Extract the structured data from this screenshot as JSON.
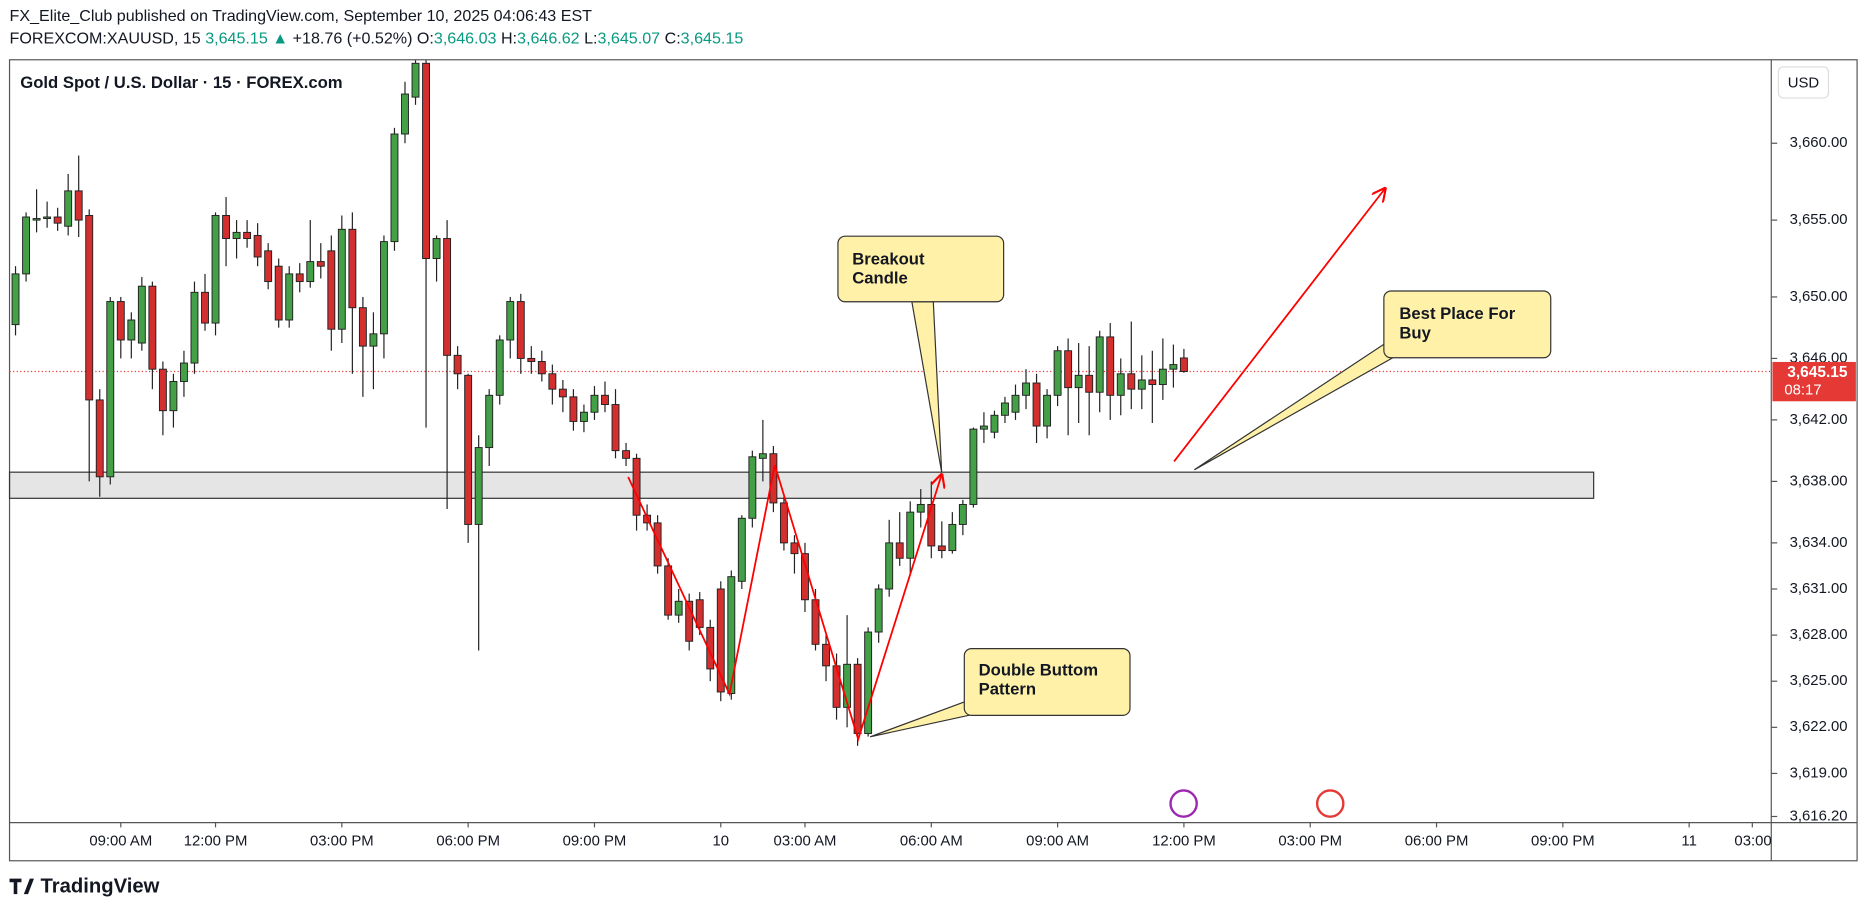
{
  "chart_data": {
    "type": "candlestick",
    "publisher": "FX_Elite_Club published on TradingView.com, September 10, 2025 04:06:43 EST",
    "info": [
      "FOREXCOM:XAUUSD, 15",
      "3,645.15",
      "▲",
      "+18.76 (+0.52%)",
      "O:",
      "3,646.03",
      "H:",
      "3,646.62",
      "L:",
      "3,645.07",
      "C:",
      "3,645.15"
    ],
    "title": "Gold Spot / U.S. Dollar · 15 · FOREX.com",
    "currency": "USD",
    "last_price": 3645.15,
    "last_price_label": "3,645.15",
    "countdown": "08:17",
    "up_color": "#43a047",
    "down_color": "#d32f2f",
    "ohlc": [
      [
        3648.2,
        3652,
        3647.5,
        3651.5
      ],
      [
        3651.5,
        3655.5,
        3651,
        3655.2
      ],
      [
        3655,
        3657,
        3654.2,
        3655.1
      ],
      [
        3655.1,
        3656.2,
        3654.5,
        3655.2
      ],
      [
        3655.2,
        3655.8,
        3654.3,
        3654.8
      ],
      [
        3654.6,
        3658,
        3654,
        3656.9
      ],
      [
        3656.9,
        3659.2,
        3653.9,
        3655
      ],
      [
        3655.3,
        3655.7,
        3638,
        3643.3
      ],
      [
        3643.3,
        3644,
        3637,
        3638.3
      ],
      [
        3638.3,
        3650,
        3637.8,
        3649.7
      ],
      [
        3649.7,
        3650,
        3646,
        3647.2
      ],
      [
        3647.2,
        3649,
        3646,
        3648.5
      ],
      [
        3647,
        3651.3,
        3646.5,
        3650.7
      ],
      [
        3650.7,
        3651,
        3644,
        3645.3
      ],
      [
        3645.3,
        3645.8,
        3641,
        3642.6
      ],
      [
        3642.6,
        3645,
        3641.5,
        3644.5
      ],
      [
        3644.5,
        3646.5,
        3643.5,
        3645.7
      ],
      [
        3645.7,
        3651,
        3645,
        3650.3
      ],
      [
        3650.3,
        3651.5,
        3647.8,
        3648.3
      ],
      [
        3648.3,
        3655.5,
        3647.5,
        3655.3
      ],
      [
        3655.3,
        3656.5,
        3652,
        3653.8
      ],
      [
        3653.8,
        3655,
        3652.5,
        3654.2
      ],
      [
        3654.2,
        3655,
        3653.2,
        3653.8
      ],
      [
        3654,
        3654.8,
        3652,
        3652.6
      ],
      [
        3653,
        3653.5,
        3650.5,
        3651
      ],
      [
        3652,
        3652.5,
        3648,
        3648.5
      ],
      [
        3648.5,
        3652,
        3648,
        3651.5
      ],
      [
        3651.5,
        3652.2,
        3650.3,
        3651
      ],
      [
        3651,
        3655,
        3650.6,
        3652.3
      ],
      [
        3652.3,
        3653.5,
        3651.2,
        3652
      ],
      [
        3653,
        3654,
        3646.5,
        3647.9
      ],
      [
        3647.9,
        3655.3,
        3647,
        3654.4
      ],
      [
        3654.4,
        3655.5,
        3645,
        3649.3
      ],
      [
        3649.3,
        3650,
        3643.5,
        3646.8
      ],
      [
        3646.8,
        3649,
        3644,
        3647.6
      ],
      [
        3647.6,
        3654,
        3646,
        3653.6
      ],
      [
        3653.6,
        3661,
        3653,
        3660.6
      ],
      [
        3660.6,
        3664,
        3660,
        3663.2
      ],
      [
        3663,
        3665.4,
        3662.5,
        3665.2
      ],
      [
        3665.2,
        3665.4,
        3641.5,
        3652.5
      ],
      [
        3652.5,
        3654,
        3651,
        3653.8
      ],
      [
        3653.8,
        3655,
        3636.2,
        3646.2
      ],
      [
        3646.2,
        3646.8,
        3644,
        3645
      ],
      [
        3644.9,
        3645,
        3634,
        3635.2
      ],
      [
        3635.2,
        3641,
        3627,
        3640.2
      ],
      [
        3640.2,
        3644,
        3639,
        3643.6
      ],
      [
        3643.6,
        3647.5,
        3643,
        3647.2
      ],
      [
        3647.2,
        3650,
        3646,
        3649.7
      ],
      [
        3649.7,
        3650.2,
        3645,
        3646
      ],
      [
        3646,
        3646.8,
        3645,
        3645.8
      ],
      [
        3645.8,
        3646.5,
        3644.5,
        3645
      ],
      [
        3645,
        3645.6,
        3643,
        3644
      ],
      [
        3644,
        3644.6,
        3642.5,
        3643.5
      ],
      [
        3643.5,
        3644,
        3641.3,
        3641.9
      ],
      [
        3641.9,
        3643,
        3641.2,
        3642.5
      ],
      [
        3642.5,
        3644.2,
        3642,
        3643.6
      ],
      [
        3643.6,
        3644.5,
        3642.5,
        3643
      ],
      [
        3643,
        3644,
        3639.5,
        3640
      ],
      [
        3640,
        3640.5,
        3639,
        3639.5
      ],
      [
        3639.5,
        3639.8,
        3634.8,
        3635.8
      ],
      [
        3635.8,
        3636.5,
        3634.8,
        3635.3
      ],
      [
        3635.3,
        3635.8,
        3632,
        3632.5
      ],
      [
        3632.5,
        3633,
        3629,
        3629.3
      ],
      [
        3629.3,
        3631,
        3628.8,
        3630.2
      ],
      [
        3630.2,
        3630.7,
        3627,
        3627.6
      ],
      [
        3630.3,
        3630.8,
        3628,
        3628.5
      ],
      [
        3628.5,
        3629,
        3625,
        3625.8
      ],
      [
        3631,
        3631.5,
        3623.7,
        3624.3
      ],
      [
        3624.2,
        3632.2,
        3623.8,
        3631.8
      ],
      [
        3631.5,
        3635.8,
        3631,
        3635.6
      ],
      [
        3635.6,
        3640,
        3635,
        3639.6
      ],
      [
        3639.5,
        3642,
        3638,
        3639.8
      ],
      [
        3639.8,
        3640.3,
        3636,
        3636.6
      ],
      [
        3636.6,
        3637,
        3633.5,
        3634
      ],
      [
        3634,
        3634.5,
        3632,
        3633.3
      ],
      [
        3633.3,
        3634,
        3629.5,
        3630.3
      ],
      [
        3630.3,
        3631,
        3627,
        3627.4
      ],
      [
        3627.4,
        3628,
        3625,
        3626
      ],
      [
        3626,
        3626.8,
        3622.5,
        3623.3
      ],
      [
        3623.3,
        3629.3,
        3622,
        3626.1
      ],
      [
        3626.1,
        3626.5,
        3620.8,
        3621.6
      ],
      [
        3621.6,
        3628.5,
        3621.4,
        3628.2
      ],
      [
        3628.2,
        3631.3,
        3627.5,
        3631
      ],
      [
        3631,
        3635.5,
        3630.5,
        3634
      ],
      [
        3634,
        3636,
        3632.5,
        3633
      ],
      [
        3633,
        3636.7,
        3632,
        3636
      ],
      [
        3636,
        3637.5,
        3635,
        3636.5
      ],
      [
        3636.5,
        3638,
        3633,
        3633.8
      ],
      [
        3633.8,
        3635.4,
        3633,
        3633.5
      ],
      [
        3633.5,
        3636,
        3633.3,
        3635.2
      ],
      [
        3635.2,
        3636.8,
        3634.5,
        3636.5
      ],
      [
        3636.5,
        3641.5,
        3636.3,
        3641.4
      ],
      [
        3641.4,
        3642.5,
        3640.5,
        3641.6
      ],
      [
        3641.2,
        3642.6,
        3640.8,
        3642.3
      ],
      [
        3642.3,
        3643.5,
        3641.8,
        3643.1
      ],
      [
        3642.5,
        3644.3,
        3642,
        3643.6
      ],
      [
        3643.6,
        3645.3,
        3642.7,
        3644.4
      ],
      [
        3644.4,
        3645,
        3640.5,
        3641.6
      ],
      [
        3641.6,
        3644,
        3640.8,
        3643.6
      ],
      [
        3643.6,
        3646.8,
        3642.9,
        3646.5
      ],
      [
        3646.5,
        3647.3,
        3641,
        3644.1
      ],
      [
        3644.1,
        3647,
        3641.8,
        3644.9
      ],
      [
        3644.9,
        3646.8,
        3641,
        3643.8
      ],
      [
        3643.8,
        3647.8,
        3642.5,
        3647.4
      ],
      [
        3647.4,
        3648.3,
        3642,
        3643.6
      ],
      [
        3643.6,
        3646,
        3642.3,
        3645
      ],
      [
        3645,
        3648.4,
        3642.7,
        3644
      ],
      [
        3644,
        3646.2,
        3642.7,
        3644.6
      ],
      [
        3644.6,
        3646.5,
        3641.8,
        3644.3
      ],
      [
        3644.3,
        3647.3,
        3643.3,
        3645.3
      ],
      [
        3645.3,
        3646.9,
        3644.1,
        3645.6
      ],
      [
        3646.03,
        3646.62,
        3645.07,
        3645.15
      ]
    ],
    "xlim": [
      -0.57,
      166.8
    ],
    "xticks": [
      {
        "value": 10,
        "label": "09:00 AM"
      },
      {
        "value": 19,
        "label": "12:00 PM"
      },
      {
        "value": 31,
        "label": "03:00 PM"
      },
      {
        "value": 43,
        "label": "06:00 PM"
      },
      {
        "value": 55,
        "label": "09:00 PM"
      },
      {
        "value": 67,
        "label": "10"
      },
      {
        "value": 75,
        "label": "03:00 AM"
      },
      {
        "value": 87,
        "label": "06:00 AM"
      },
      {
        "value": 99,
        "label": "09:00 AM"
      },
      {
        "value": 111,
        "label": "12:00 PM"
      },
      {
        "value": 123,
        "label": "03:00 PM"
      },
      {
        "value": 135,
        "label": "06:00 PM"
      },
      {
        "value": 147,
        "label": "09:00 PM"
      },
      {
        "value": 159,
        "label": "11"
      },
      {
        "value": 165,
        "label": "03:00"
      }
    ],
    "ylim": [
      3615.8,
      3665.43
    ],
    "yticks": [
      {
        "value": 3660,
        "label": "3,660.00"
      },
      {
        "value": 3655,
        "label": "3,655.00"
      },
      {
        "value": 3650,
        "label": "3,650.00"
      },
      {
        "value": 3646,
        "label": "3,646.00"
      },
      {
        "value": 3642,
        "label": "3,642.00"
      },
      {
        "value": 3638,
        "label": "3,638.00"
      },
      {
        "value": 3634,
        "label": "3,634.00"
      },
      {
        "value": 3631,
        "label": "3,631.00"
      },
      {
        "value": 3628,
        "label": "3,628.00"
      },
      {
        "value": 3625,
        "label": "3,625.00"
      },
      {
        "value": 3622,
        "label": "3,622.00"
      },
      {
        "value": 3619,
        "label": "3,619.00"
      },
      {
        "value": 3616.2,
        "label": "3,616.20"
      }
    ],
    "zone": {
      "low": 3636.9,
      "high": 3638.6
    },
    "annotations": [
      [
        "Breakout",
        "Candle"
      ],
      [
        "Best Place For",
        "Buy"
      ],
      [
        "Double Buttom",
        "Pattern"
      ]
    ],
    "brand": "TradingView"
  }
}
